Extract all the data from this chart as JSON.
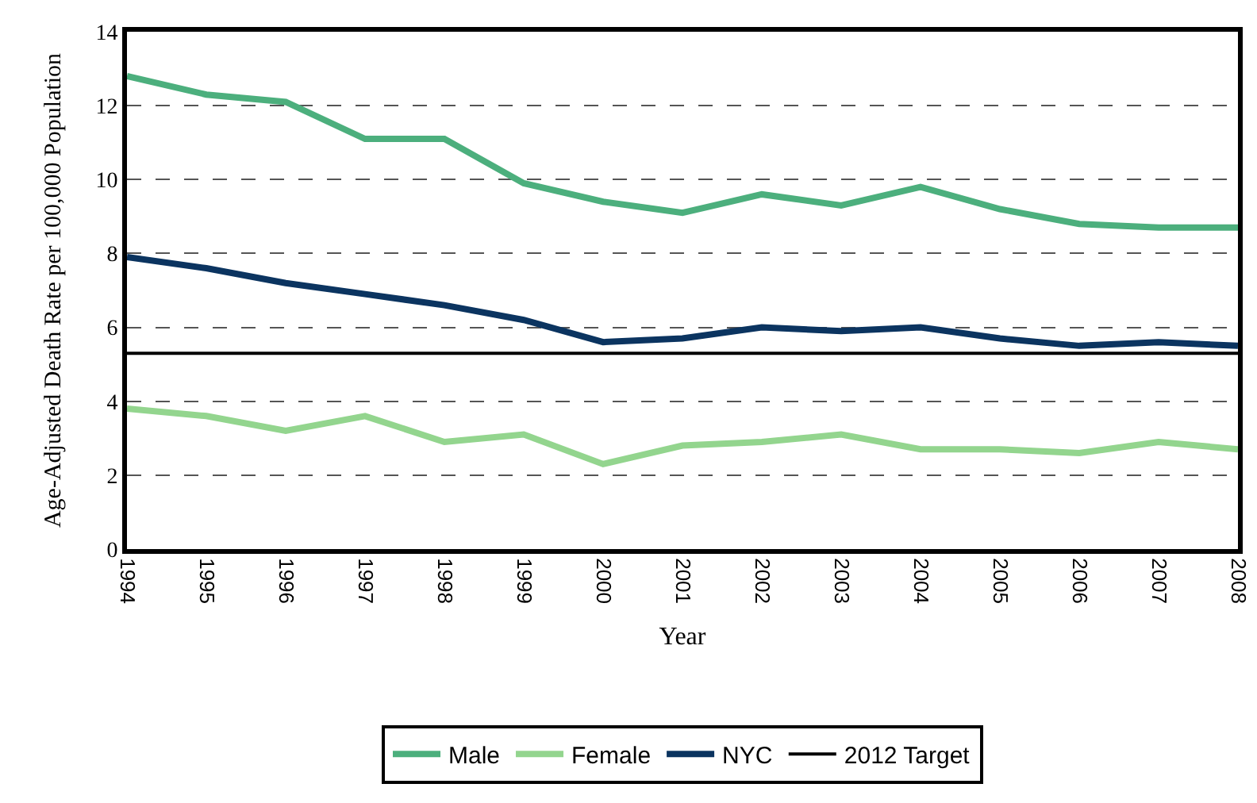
{
  "chart_data": {
    "type": "line",
    "xlabel": "Year",
    "ylabel": "Age-Adjusted Death Rate per 100,000 Population",
    "categories": [
      "1994",
      "1995",
      "1996",
      "1997",
      "1998",
      "1999",
      "2000",
      "2001",
      "2002",
      "2003",
      "2004",
      "2005",
      "2006",
      "2007",
      "2008"
    ],
    "series": [
      {
        "name": "Male",
        "color": "#4caf7d",
        "values": [
          12.8,
          12.3,
          12.1,
          11.1,
          11.1,
          9.9,
          9.4,
          9.1,
          9.6,
          9.3,
          9.8,
          9.2,
          8.8,
          8.7,
          8.7
        ]
      },
      {
        "name": "Female",
        "color": "#93d58e",
        "values": [
          3.8,
          3.6,
          3.2,
          3.6,
          2.9,
          3.1,
          2.3,
          2.8,
          2.9,
          3.1,
          2.7,
          2.7,
          2.6,
          2.9,
          2.7
        ]
      },
      {
        "name": "NYC",
        "color": "#0b3460",
        "values": [
          7.9,
          7.6,
          7.2,
          6.9,
          6.6,
          6.2,
          5.6,
          5.7,
          6.0,
          5.9,
          6.0,
          5.7,
          5.5,
          5.6,
          5.5
        ]
      }
    ],
    "ref_lines": [
      {
        "axis": "y",
        "value": 5.3,
        "label": "2012 Target",
        "color": "#000000"
      }
    ],
    "ylim": [
      0,
      14
    ],
    "yticks": [
      0,
      2,
      4,
      6,
      8,
      10,
      12,
      14
    ],
    "grid": "y",
    "legend": "bottom",
    "marker": "none",
    "line_style": "solid"
  }
}
